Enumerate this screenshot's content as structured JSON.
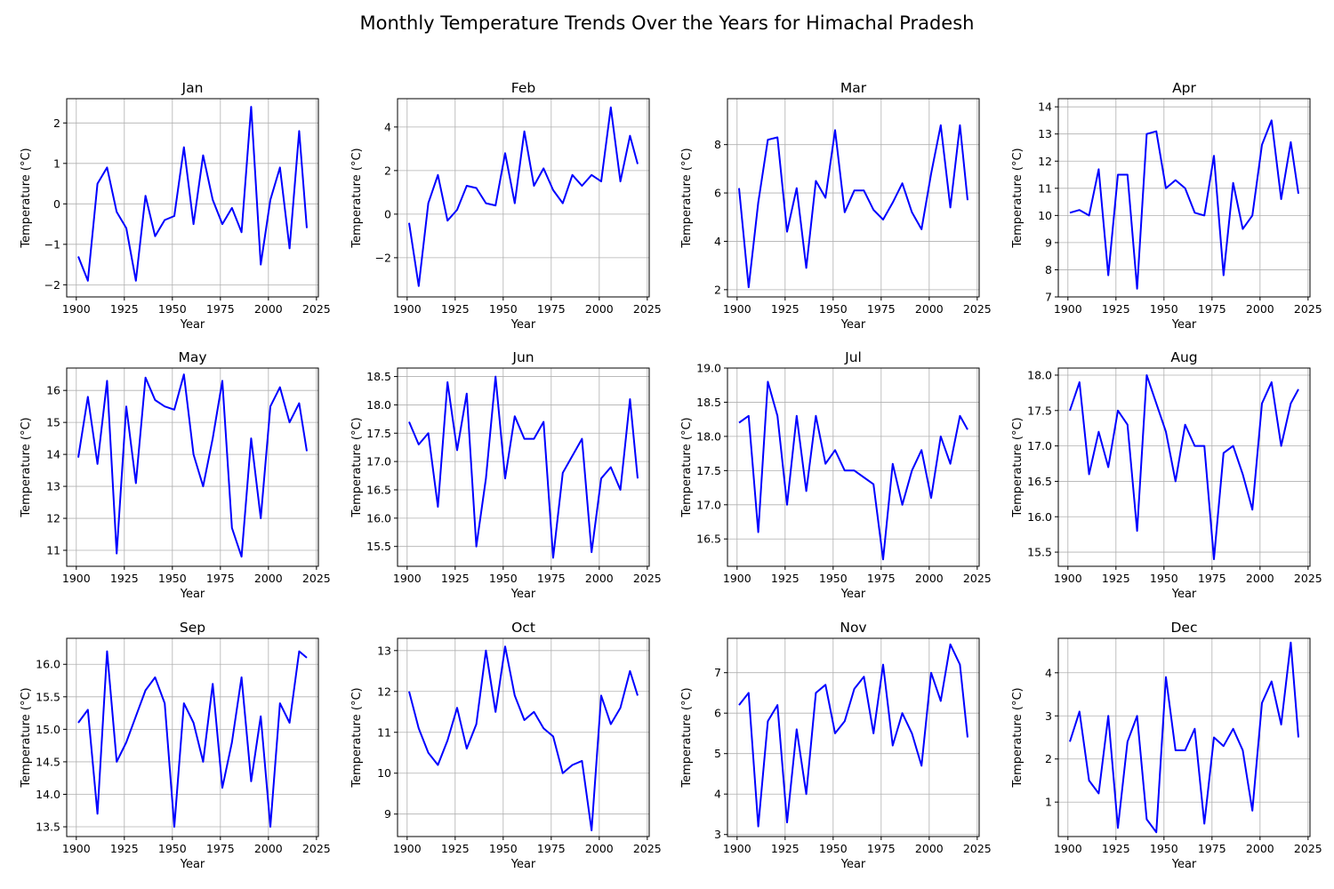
{
  "figure": {
    "title": "Monthly Temperature Trends Over the Years for Himachal Pradesh",
    "line_color": "#0000ff"
  },
  "chart_data": [
    {
      "type": "line",
      "title": "Jan",
      "xlabel": "Year",
      "ylabel": "Temperature (°C)",
      "xlim": [
        1895,
        2026
      ],
      "ylim": [
        -2.3,
        2.6
      ],
      "xticks": [
        1900,
        1925,
        1950,
        1975,
        2000,
        2025
      ],
      "yticks": [
        -2,
        -1,
        0,
        1,
        2
      ],
      "ytick_labels": [
        "−2",
        "−1",
        "0",
        "1",
        "2"
      ],
      "grid": true,
      "x": [
        1901,
        1906,
        1911,
        1916,
        1921,
        1926,
        1931,
        1936,
        1941,
        1946,
        1951,
        1956,
        1961,
        1966,
        1971,
        1976,
        1981,
        1986,
        1991,
        1996,
        2001,
        2006,
        2011,
        2016,
        2020
      ],
      "series": [
        {
          "values": [
            -1.3,
            -1.9,
            0.5,
            0.9,
            -0.2,
            -0.6,
            -1.9,
            0.2,
            -0.8,
            -0.4,
            -0.3,
            1.4,
            -0.5,
            1.2,
            0.1,
            -0.5,
            -0.1,
            -0.7,
            2.4,
            -1.5,
            0.1,
            0.9,
            -1.1,
            1.8,
            -0.6
          ]
        }
      ]
    },
    {
      "type": "line",
      "title": "Feb",
      "xlabel": "Year",
      "ylabel": "Temperature (°C)",
      "xlim": [
        1895,
        2026
      ],
      "ylim": [
        -3.8,
        5.3
      ],
      "xticks": [
        1900,
        1925,
        1950,
        1975,
        2000,
        2025
      ],
      "yticks": [
        -2,
        0,
        2,
        4
      ],
      "ytick_labels": [
        "−2",
        "0",
        "2",
        "4"
      ],
      "grid": true,
      "x": [
        1901,
        1906,
        1911,
        1916,
        1921,
        1926,
        1931,
        1936,
        1941,
        1946,
        1951,
        1956,
        1961,
        1966,
        1971,
        1976,
        1981,
        1986,
        1991,
        1996,
        2001,
        2006,
        2011,
        2016,
        2020
      ],
      "series": [
        {
          "values": [
            -0.4,
            -3.3,
            0.5,
            1.8,
            -0.3,
            0.2,
            1.3,
            1.2,
            0.5,
            0.4,
            2.8,
            0.5,
            3.8,
            1.3,
            2.1,
            1.1,
            0.5,
            1.8,
            1.3,
            1.8,
            1.5,
            4.9,
            1.5,
            3.6,
            2.3
          ]
        }
      ]
    },
    {
      "type": "line",
      "title": "Mar",
      "xlabel": "Year",
      "ylabel": "Temperature (°C)",
      "xlim": [
        1895,
        2026
      ],
      "ylim": [
        1.7,
        9.9
      ],
      "xticks": [
        1900,
        1925,
        1950,
        1975,
        2000,
        2025
      ],
      "yticks": [
        2,
        4,
        6,
        8
      ],
      "ytick_labels": [
        "2",
        "4",
        "6",
        "8"
      ],
      "grid": true,
      "x": [
        1901,
        1906,
        1911,
        1916,
        1921,
        1926,
        1931,
        1936,
        1941,
        1946,
        1951,
        1956,
        1961,
        1966,
        1971,
        1976,
        1981,
        1986,
        1991,
        1996,
        2001,
        2006,
        2011,
        2016,
        2020
      ],
      "series": [
        {
          "values": [
            6.2,
            2.1,
            5.6,
            8.2,
            8.3,
            4.4,
            6.2,
            2.9,
            6.5,
            5.8,
            8.6,
            5.2,
            6.1,
            6.1,
            5.3,
            4.9,
            5.6,
            6.4,
            5.2,
            4.5,
            6.8,
            8.8,
            5.4,
            8.8,
            5.7
          ]
        }
      ]
    },
    {
      "type": "line",
      "title": "Apr",
      "xlabel": "Year",
      "ylabel": "Temperature (°C)",
      "xlim": [
        1895,
        2026
      ],
      "ylim": [
        7.0,
        14.3
      ],
      "xticks": [
        1900,
        1925,
        1950,
        1975,
        2000,
        2025
      ],
      "yticks": [
        7,
        8,
        9,
        10,
        11,
        12,
        13,
        14
      ],
      "ytick_labels": [
        "7",
        "8",
        "9",
        "10",
        "11",
        "12",
        "13",
        "14"
      ],
      "grid": true,
      "x": [
        1901,
        1906,
        1911,
        1916,
        1921,
        1926,
        1931,
        1936,
        1941,
        1946,
        1951,
        1956,
        1961,
        1966,
        1971,
        1976,
        1981,
        1986,
        1991,
        1996,
        2001,
        2006,
        2011,
        2016,
        2020
      ],
      "series": [
        {
          "values": [
            10.1,
            10.2,
            10.0,
            11.7,
            7.8,
            11.5,
            11.5,
            7.3,
            13.0,
            13.1,
            11.0,
            11.3,
            11.0,
            10.1,
            10.0,
            12.2,
            7.8,
            11.2,
            9.5,
            10.0,
            12.6,
            13.5,
            10.6,
            12.7,
            10.8
          ]
        }
      ]
    },
    {
      "type": "line",
      "title": "May",
      "xlabel": "Year",
      "ylabel": "Temperature (°C)",
      "xlim": [
        1895,
        2026
      ],
      "ylim": [
        10.5,
        16.7
      ],
      "xticks": [
        1900,
        1925,
        1950,
        1975,
        2000,
        2025
      ],
      "yticks": [
        11,
        12,
        13,
        14,
        15,
        16
      ],
      "ytick_labels": [
        "11",
        "12",
        "13",
        "14",
        "15",
        "16"
      ],
      "grid": true,
      "x": [
        1901,
        1906,
        1911,
        1916,
        1921,
        1926,
        1931,
        1936,
        1941,
        1946,
        1951,
        1956,
        1961,
        1966,
        1971,
        1976,
        1981,
        1986,
        1991,
        1996,
        2001,
        2006,
        2011,
        2016,
        2020
      ],
      "series": [
        {
          "values": [
            13.9,
            15.8,
            13.7,
            16.3,
            10.9,
            15.5,
            13.1,
            16.4,
            15.7,
            15.5,
            15.4,
            16.5,
            14.0,
            13.0,
            14.5,
            16.3,
            11.7,
            10.8,
            14.5,
            12.0,
            15.5,
            16.1,
            15.0,
            15.6,
            14.1
          ]
        }
      ]
    },
    {
      "type": "line",
      "title": "Jun",
      "xlabel": "Year",
      "ylabel": "Temperature (°C)",
      "xlim": [
        1895,
        2026
      ],
      "ylim": [
        15.15,
        18.65
      ],
      "xticks": [
        1900,
        1925,
        1950,
        1975,
        2000,
        2025
      ],
      "yticks": [
        15.5,
        16.0,
        16.5,
        17.0,
        17.5,
        18.0,
        18.5
      ],
      "ytick_labels": [
        "15.5",
        "16.0",
        "16.5",
        "17.0",
        "17.5",
        "18.0",
        "18.5"
      ],
      "grid": true,
      "x": [
        1901,
        1906,
        1911,
        1916,
        1921,
        1926,
        1931,
        1936,
        1941,
        1946,
        1951,
        1956,
        1961,
        1966,
        1971,
        1976,
        1981,
        1986,
        1991,
        1996,
        2001,
        2006,
        2011,
        2016,
        2020
      ],
      "series": [
        {
          "values": [
            17.7,
            17.3,
            17.5,
            16.2,
            18.4,
            17.2,
            18.2,
            15.5,
            16.7,
            18.5,
            16.7,
            17.8,
            17.4,
            17.4,
            17.7,
            15.3,
            16.8,
            17.1,
            17.4,
            15.4,
            16.7,
            16.9,
            16.5,
            18.1,
            16.7
          ]
        }
      ]
    },
    {
      "type": "line",
      "title": "Jul",
      "xlabel": "Year",
      "ylabel": "Temperature (°C)",
      "xlim": [
        1895,
        2026
      ],
      "ylim": [
        16.1,
        19.0
      ],
      "xticks": [
        1900,
        1925,
        1950,
        1975,
        2000,
        2025
      ],
      "yticks": [
        16.5,
        17.0,
        17.5,
        18.0,
        18.5,
        19.0
      ],
      "ytick_labels": [
        "16.5",
        "17.0",
        "17.5",
        "18.0",
        "18.5",
        "19.0"
      ],
      "grid": true,
      "x": [
        1901,
        1906,
        1911,
        1916,
        1921,
        1926,
        1931,
        1936,
        1941,
        1946,
        1951,
        1956,
        1961,
        1966,
        1971,
        1976,
        1981,
        1986,
        1991,
        1996,
        2001,
        2006,
        2011,
        2016,
        2020
      ],
      "series": [
        {
          "values": [
            18.2,
            18.3,
            16.6,
            18.8,
            18.3,
            17.0,
            18.3,
            17.2,
            18.3,
            17.6,
            17.8,
            17.5,
            17.5,
            17.4,
            17.3,
            16.2,
            17.6,
            17.0,
            17.5,
            17.8,
            17.1,
            18.0,
            17.6,
            18.3,
            18.1
          ]
        }
      ]
    },
    {
      "type": "line",
      "title": "Aug",
      "xlabel": "Year",
      "ylabel": "Temperature (°C)",
      "xlim": [
        1895,
        2026
      ],
      "ylim": [
        15.3,
        18.1
      ],
      "xticks": [
        1900,
        1925,
        1950,
        1975,
        2000,
        2025
      ],
      "yticks": [
        15.5,
        16.0,
        16.5,
        17.0,
        17.5,
        18.0
      ],
      "ytick_labels": [
        "15.5",
        "16.0",
        "16.5",
        "17.0",
        "17.5",
        "18.0"
      ],
      "grid": true,
      "x": [
        1901,
        1906,
        1911,
        1916,
        1921,
        1926,
        1931,
        1936,
        1941,
        1946,
        1951,
        1956,
        1961,
        1966,
        1971,
        1976,
        1981,
        1986,
        1991,
        1996,
        2001,
        2006,
        2011,
        2016,
        2020
      ],
      "series": [
        {
          "values": [
            17.5,
            17.9,
            16.6,
            17.2,
            16.7,
            17.5,
            17.3,
            15.8,
            18.0,
            17.6,
            17.2,
            16.5,
            17.3,
            17.0,
            17.0,
            15.4,
            16.9,
            17.0,
            16.6,
            16.1,
            17.6,
            17.9,
            17.0,
            17.6,
            17.8
          ]
        }
      ]
    },
    {
      "type": "line",
      "title": "Sep",
      "xlabel": "Year",
      "ylabel": "Temperature (°C)",
      "xlim": [
        1895,
        2026
      ],
      "ylim": [
        13.35,
        16.4
      ],
      "xticks": [
        1900,
        1925,
        1950,
        1975,
        2000,
        2025
      ],
      "yticks": [
        13.5,
        14.0,
        14.5,
        15.0,
        15.5,
        16.0
      ],
      "ytick_labels": [
        "13.5",
        "14.0",
        "14.5",
        "15.0",
        "15.5",
        "16.0"
      ],
      "grid": true,
      "x": [
        1901,
        1906,
        1911,
        1916,
        1921,
        1926,
        1931,
        1936,
        1941,
        1946,
        1951,
        1956,
        1961,
        1966,
        1971,
        1976,
        1981,
        1986,
        1991,
        1996,
        2001,
        2006,
        2011,
        2016,
        2020
      ],
      "series": [
        {
          "values": [
            15.1,
            15.3,
            13.7,
            16.2,
            14.5,
            14.8,
            15.2,
            15.6,
            15.8,
            15.4,
            13.5,
            15.4,
            15.1,
            14.5,
            15.7,
            14.1,
            14.8,
            15.8,
            14.2,
            15.2,
            13.5,
            15.4,
            15.1,
            16.2,
            16.1
          ]
        }
      ]
    },
    {
      "type": "line",
      "title": "Oct",
      "xlabel": "Year",
      "ylabel": "Temperature (°C)",
      "xlim": [
        1895,
        2026
      ],
      "ylim": [
        8.45,
        13.3
      ],
      "xticks": [
        1900,
        1925,
        1950,
        1975,
        2000,
        2025
      ],
      "yticks": [
        9,
        10,
        11,
        12,
        13
      ],
      "ytick_labels": [
        "9",
        "10",
        "11",
        "12",
        "13"
      ],
      "grid": true,
      "x": [
        1901,
        1906,
        1911,
        1916,
        1921,
        1926,
        1931,
        1936,
        1941,
        1946,
        1951,
        1956,
        1961,
        1966,
        1971,
        1976,
        1981,
        1986,
        1991,
        1996,
        2001,
        2006,
        2011,
        2016,
        2020
      ],
      "series": [
        {
          "values": [
            12.0,
            11.1,
            10.5,
            10.2,
            10.8,
            11.6,
            10.6,
            11.2,
            13.0,
            11.5,
            13.1,
            11.9,
            11.3,
            11.5,
            11.1,
            10.9,
            10.0,
            10.2,
            10.3,
            8.6,
            11.9,
            11.2,
            11.6,
            12.5,
            11.9
          ]
        }
      ]
    },
    {
      "type": "line",
      "title": "Nov",
      "xlabel": "Year",
      "ylabel": "Temperature (°C)",
      "xlim": [
        1895,
        2026
      ],
      "ylim": [
        2.95,
        7.85
      ],
      "xticks": [
        1900,
        1925,
        1950,
        1975,
        2000,
        2025
      ],
      "yticks": [
        3,
        4,
        5,
        6,
        7
      ],
      "ytick_labels": [
        "3",
        "4",
        "5",
        "6",
        "7"
      ],
      "grid": true,
      "x": [
        1901,
        1906,
        1911,
        1916,
        1921,
        1926,
        1931,
        1936,
        1941,
        1946,
        1951,
        1956,
        1961,
        1966,
        1971,
        1976,
        1981,
        1986,
        1991,
        1996,
        2001,
        2006,
        2011,
        2016,
        2020
      ],
      "series": [
        {
          "values": [
            6.2,
            6.5,
            3.2,
            5.8,
            6.2,
            3.3,
            5.6,
            4.0,
            6.5,
            6.7,
            5.5,
            5.8,
            6.6,
            6.9,
            5.5,
            7.2,
            5.2,
            6.0,
            5.5,
            4.7,
            7.0,
            6.3,
            7.7,
            7.2,
            5.4
          ]
        }
      ]
    },
    {
      "type": "line",
      "title": "Dec",
      "xlabel": "Year",
      "ylabel": "Temperature (°C)",
      "xlim": [
        1895,
        2026
      ],
      "ylim": [
        0.2,
        4.8
      ],
      "xticks": [
        1900,
        1925,
        1950,
        1975,
        2000,
        2025
      ],
      "yticks": [
        1,
        2,
        3,
        4
      ],
      "ytick_labels": [
        "1",
        "2",
        "3",
        "4"
      ],
      "grid": true,
      "x": [
        1901,
        1906,
        1911,
        1916,
        1921,
        1926,
        1931,
        1936,
        1941,
        1946,
        1951,
        1956,
        1961,
        1966,
        1971,
        1976,
        1981,
        1986,
        1991,
        1996,
        2001,
        2006,
        2011,
        2016,
        2020
      ],
      "series": [
        {
          "values": [
            2.4,
            3.1,
            1.5,
            1.2,
            3.0,
            0.4,
            2.4,
            3.0,
            0.6,
            0.3,
            3.9,
            2.2,
            2.2,
            2.7,
            0.5,
            2.5,
            2.3,
            2.7,
            2.2,
            0.8,
            3.3,
            3.8,
            2.8,
            4.7,
            2.5
          ]
        }
      ]
    }
  ]
}
